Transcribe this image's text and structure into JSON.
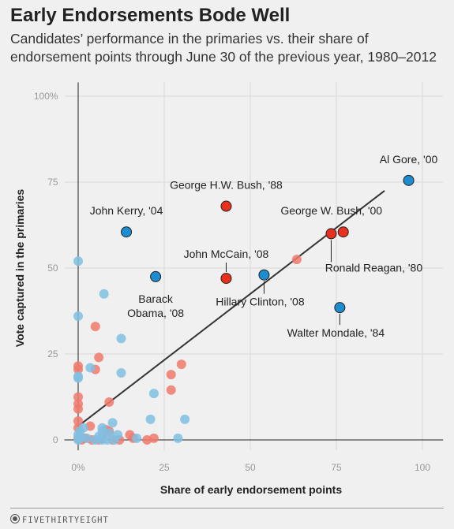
{
  "header": {
    "title": "Early Endorsements Bode Well",
    "subtitle": "Candidates’ performance in the primaries vs. their share of endorsement points through June 30 of the previous year, 1980–2012"
  },
  "footer": {
    "brand": "FIVETHIRTYEIGHT"
  },
  "colors": {
    "republican": "#e8301e",
    "democrat": "#1d8cd0",
    "republican_light": "#f0796b",
    "democrat_light": "#7fbfe3",
    "trendline": "#333333",
    "grid": "#d9d9d9",
    "background": "#f0f0f0"
  },
  "chart_data": {
    "type": "scatter",
    "title": "Early Endorsements Bode Well",
    "xlabel": "Share of early endorsement points",
    "ylabel": "Vote captured in the primaries",
    "xlim": [
      -4,
      106
    ],
    "ylim": [
      -3,
      104
    ],
    "x_ticks": [
      0,
      25,
      50,
      75,
      100
    ],
    "x_tick_labels": [
      "0%",
      "25",
      "50",
      "75",
      "100"
    ],
    "y_ticks": [
      0,
      25,
      50,
      75,
      100
    ],
    "y_tick_labels": [
      "0",
      "25",
      "50",
      "75",
      "100%"
    ],
    "grid": true,
    "trendline": {
      "x": [
        0,
        89
      ],
      "y": [
        4,
        72.5
      ]
    },
    "highlighted": [
      {
        "label": "Al Gore, '00",
        "x": 96,
        "y": 75.5,
        "party": "democrat"
      },
      {
        "label": "George H.W. Bush, '88",
        "x": 43,
        "y": 68,
        "party": "republican"
      },
      {
        "label": "John Kerry, '04",
        "x": 14,
        "y": 60.5,
        "party": "democrat"
      },
      {
        "label": "George W. Bush, '00",
        "x": 77,
        "y": 60.5,
        "party": "republican"
      },
      {
        "label": "Ronald Reagan, '80",
        "x": 73.5,
        "y": 60,
        "party": "republican"
      },
      {
        "label": "John McCain, '08",
        "x": 43,
        "y": 47,
        "party": "republican"
      },
      {
        "label": "Barack Obama, '08",
        "x": 22.5,
        "y": 47.5,
        "party": "democrat"
      },
      {
        "label": "Hillary Clinton, '08",
        "x": 54,
        "y": 48,
        "party": "democrat"
      },
      {
        "label": "Walter Mondale, '84",
        "x": 76,
        "y": 38.5,
        "party": "democrat"
      }
    ],
    "series": [
      {
        "name": "Republican",
        "points": [
          [
            63.5,
            52.5
          ],
          [
            5,
            33
          ],
          [
            6,
            24
          ],
          [
            0,
            21.5
          ],
          [
            0,
            20.5
          ],
          [
            5,
            20.5
          ],
          [
            30,
            22
          ],
          [
            27,
            19
          ],
          [
            27,
            14.5
          ],
          [
            0,
            12.5
          ],
          [
            0,
            10.5
          ],
          [
            9,
            11
          ],
          [
            0,
            9
          ],
          [
            0,
            5.5
          ],
          [
            0,
            3.5
          ],
          [
            3.5,
            4
          ],
          [
            9,
            2.5
          ],
          [
            8,
            3
          ],
          [
            15,
            1.5
          ],
          [
            22,
            0.5
          ],
          [
            0,
            0.5
          ],
          [
            1,
            0
          ],
          [
            2,
            0.5
          ],
          [
            4,
            0
          ],
          [
            6,
            0
          ],
          [
            7,
            0.5
          ],
          [
            10,
            0
          ],
          [
            12,
            0
          ],
          [
            16,
            0.5
          ],
          [
            20,
            0
          ]
        ]
      },
      {
        "name": "Democrat",
        "points": [
          [
            0,
            52
          ],
          [
            7.5,
            42.5
          ],
          [
            0,
            36
          ],
          [
            12.5,
            29.5
          ],
          [
            3.5,
            21
          ],
          [
            12.5,
            19.5
          ],
          [
            0,
            18.5
          ],
          [
            0,
            18
          ],
          [
            22,
            13.5
          ],
          [
            31,
            6
          ],
          [
            21,
            6
          ],
          [
            10,
            5
          ],
          [
            1.5,
            3.5
          ],
          [
            0.5,
            2.5
          ],
          [
            7,
            3.5
          ],
          [
            7,
            2.5
          ],
          [
            9,
            2
          ],
          [
            11.5,
            1.5
          ],
          [
            0,
            1.5
          ],
          [
            0.5,
            0.5
          ],
          [
            2.5,
            0.5
          ],
          [
            5,
            0
          ],
          [
            7,
            0
          ],
          [
            8.5,
            0
          ],
          [
            10.5,
            0
          ],
          [
            17,
            0.5
          ],
          [
            29,
            0.5
          ],
          [
            0,
            0
          ],
          [
            6,
            1
          ]
        ]
      }
    ]
  }
}
